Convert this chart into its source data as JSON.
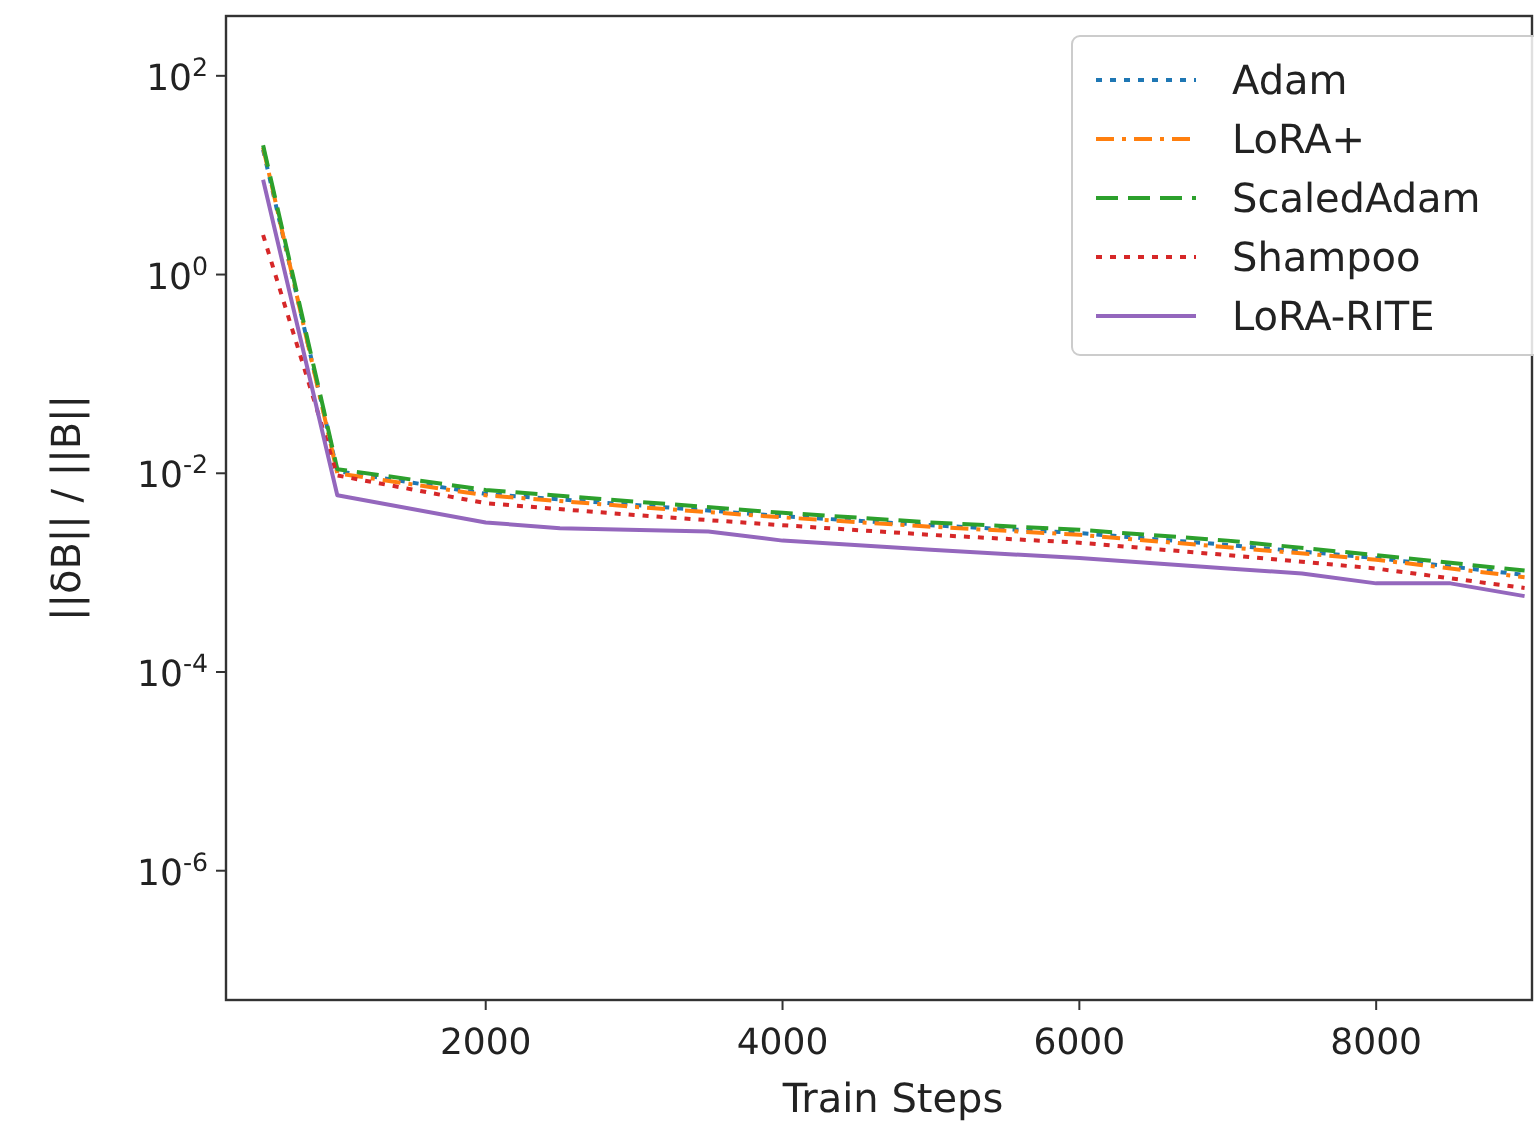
{
  "chart_data": {
    "type": "line",
    "xlabel": "Train Steps",
    "ylabel": "||δB|| / ||B||",
    "log": "y",
    "xlim": [
      250,
      9050
    ],
    "xticks": [
      2000,
      4000,
      6000,
      8000
    ],
    "ylim": [
      5e-08,
      400
    ],
    "yticks": [
      {
        "value": 100,
        "label": "10$^{2}$"
      },
      {
        "value": 1,
        "label": "10$^{0}$"
      },
      {
        "value": 0.01,
        "label": "10$^{-2}$"
      },
      {
        "value": 0.0001,
        "label": "10$^{-4}$"
      },
      {
        "value": 1e-06,
        "label": "10$^{-6}$"
      }
    ],
    "grid": false,
    "legend": "top right",
    "marker": "none",
    "series": [
      {
        "name": "Adam",
        "color": "#1f77b4",
        "line_style": "dotted",
        "x": [
          500,
          1000,
          2000,
          3000,
          4000,
          5000,
          6000,
          7000,
          8000,
          9000
        ],
        "values": [
          18,
          0.0105,
          0.0062,
          0.0048,
          0.0037,
          0.003,
          0.0025,
          0.0019,
          0.0014,
          0.00095
        ]
      },
      {
        "name": "LoRA+",
        "color": "#ff7f0e",
        "line_style": "dashdot",
        "x": [
          500,
          1000,
          2000,
          3000,
          4000,
          5000,
          6000,
          7000,
          8000,
          9000
        ],
        "values": [
          19,
          0.01,
          0.006,
          0.0046,
          0.0036,
          0.0029,
          0.0024,
          0.0018,
          0.00135,
          0.0009
        ]
      },
      {
        "name": "ScaledAdam",
        "color": "#2ca02c",
        "line_style": "dashed",
        "x": [
          500,
          1000,
          2000,
          3000,
          4000,
          5000,
          6000,
          7000,
          8000,
          9000
        ],
        "values": [
          20,
          0.011,
          0.0068,
          0.0052,
          0.004,
          0.0032,
          0.0027,
          0.0021,
          0.0015,
          0.00105
        ]
      },
      {
        "name": "Shampoo",
        "color": "#d62728",
        "line_style": "dotted",
        "x": [
          500,
          1000,
          2000,
          3000,
          4000,
          5000,
          6000,
          7000,
          8000,
          9000
        ],
        "values": [
          2.5,
          0.0095,
          0.005,
          0.0038,
          0.003,
          0.0024,
          0.002,
          0.0015,
          0.0011,
          0.0007
        ]
      },
      {
        "name": "LoRA-RITE",
        "color": "#9467bd",
        "line_style": "solid",
        "x": [
          500,
          1000,
          2000,
          2500,
          3500,
          4000,
          5000,
          6000,
          7000,
          7500,
          8000,
          8500,
          9000
        ],
        "values": [
          9,
          0.006,
          0.0032,
          0.0028,
          0.0026,
          0.0021,
          0.0017,
          0.0014,
          0.0011,
          0.00098,
          0.00078,
          0.00078,
          0.00058
        ]
      }
    ]
  }
}
